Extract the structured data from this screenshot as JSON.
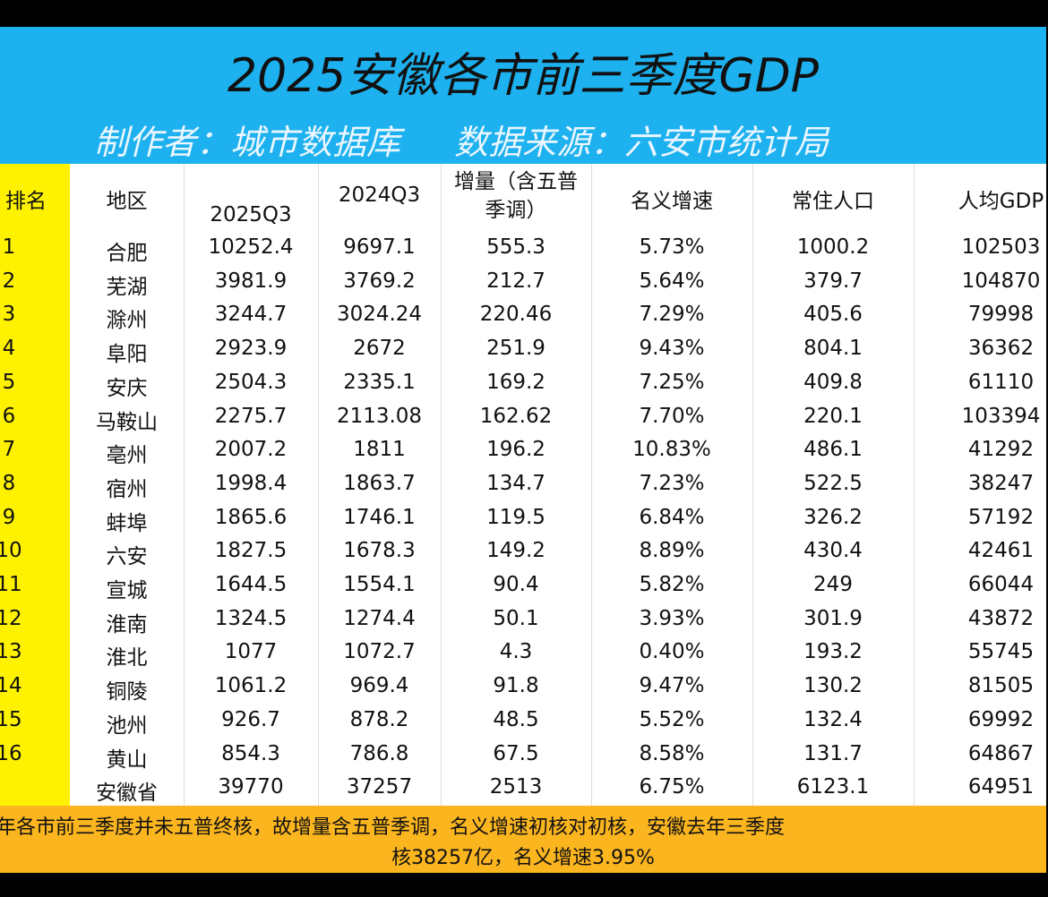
{
  "header": {
    "title": "2025安徽各市前三季度GDP",
    "subtitle": [
      "制作者：城市数据库",
      "数据来源：六安市统计局"
    ]
  },
  "table": {
    "columns": [
      "排名",
      "地区",
      "2025Q3",
      "2024Q3",
      "增量（含五普季调）",
      "名义增速",
      "常住人口",
      "人均GDP"
    ],
    "rows": [
      [
        "1",
        "合肥",
        "10252.4",
        "9697.1",
        "555.3",
        "5.73%",
        "1000.2",
        "102503"
      ],
      [
        "2",
        "芜湖",
        "3981.9",
        "3769.2",
        "212.7",
        "5.64%",
        "379.7",
        "104870"
      ],
      [
        "3",
        "滁州",
        "3244.7",
        "3024.24",
        "220.46",
        "7.29%",
        "405.6",
        "79998"
      ],
      [
        "4",
        "阜阳",
        "2923.9",
        "2672",
        "251.9",
        "9.43%",
        "804.1",
        "36362"
      ],
      [
        "5",
        "安庆",
        "2504.3",
        "2335.1",
        "169.2",
        "7.25%",
        "409.8",
        "61110"
      ],
      [
        "6",
        "马鞍山",
        "2275.7",
        "2113.08",
        "162.62",
        "7.70%",
        "220.1",
        "103394"
      ],
      [
        "7",
        "亳州",
        "2007.2",
        "1811",
        "196.2",
        "10.83%",
        "486.1",
        "41292"
      ],
      [
        "8",
        "宿州",
        "1998.4",
        "1863.7",
        "134.7",
        "7.23%",
        "522.5",
        "38247"
      ],
      [
        "9",
        "蚌埠",
        "1865.6",
        "1746.1",
        "119.5",
        "6.84%",
        "326.2",
        "57192"
      ],
      [
        "10",
        "六安",
        "1827.5",
        "1678.3",
        "149.2",
        "8.89%",
        "430.4",
        "42461"
      ],
      [
        "11",
        "宣城",
        "1644.5",
        "1554.1",
        "90.4",
        "5.82%",
        "249",
        "66044"
      ],
      [
        "12",
        "淮南",
        "1324.5",
        "1274.4",
        "50.1",
        "3.93%",
        "301.9",
        "43872"
      ],
      [
        "13",
        "淮北",
        "1077",
        "1072.7",
        "4.3",
        "0.40%",
        "193.2",
        "55745"
      ],
      [
        "14",
        "铜陵",
        "1061.2",
        "969.4",
        "91.8",
        "9.47%",
        "130.2",
        "81505"
      ],
      [
        "15",
        "池州",
        "926.7",
        "878.2",
        "48.5",
        "5.52%",
        "132.4",
        "69992"
      ],
      [
        "16",
        "黄山",
        "854.3",
        "786.8",
        "67.5",
        "8.58%",
        "131.7",
        "64867"
      ]
    ],
    "total": [
      "安徽省",
      "39770",
      "37257",
      "2513",
      "6.75%",
      "6123.1",
      "64951"
    ]
  },
  "footer": {
    "lines": [
      "年各市前三季度并未五普终核，故增量含五普季调，名义增速初核对初核，安徽去年三季度",
      "核38257亿，名义增速3.95%"
    ]
  }
}
